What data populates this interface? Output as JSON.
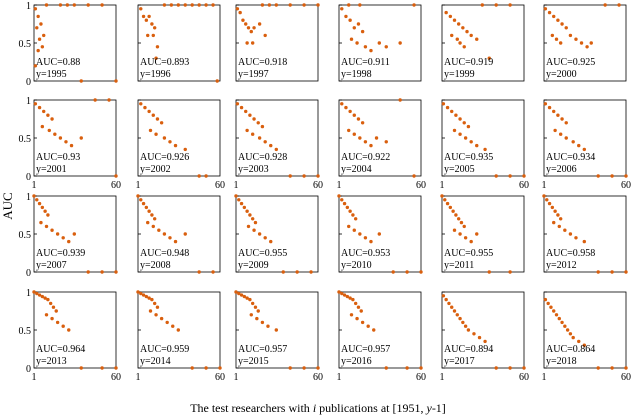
{
  "figure": {
    "ylabel": "AUC",
    "xlabel_prefix": "The test researchers with ",
    "xlabel_italic": "i",
    "xlabel_middle": " publications at [1951, ",
    "xlabel_italic2": "y",
    "xlabel_suffix": "-1]"
  },
  "colors": {
    "points": "#d95f0e",
    "axis": "#000000"
  },
  "chart_data": [
    {
      "type": "scatter",
      "auc_label": "AUC=0.88",
      "year_label": "y=1995",
      "xlim": [
        1,
        60
      ],
      "ylim": [
        0,
        1
      ],
      "x_ticks": [],
      "y_ticks": [
        "1",
        "0.5",
        "0"
      ],
      "x": [
        2,
        4,
        6,
        3,
        5,
        8,
        4,
        7,
        2,
        10,
        20,
        25,
        30,
        40,
        50,
        35,
        60
      ],
      "y": [
        0.95,
        0.85,
        0.75,
        0.7,
        0.55,
        0.6,
        0.4,
        0.45,
        0.2,
        1,
        1,
        1,
        1,
        1,
        1,
        0,
        0
      ]
    },
    {
      "type": "scatter",
      "auc_label": "AUC=0.893",
      "year_label": "y=1996",
      "xlim": [
        1,
        60
      ],
      "ylim": [
        0,
        1
      ],
      "x_ticks": [],
      "y_ticks": [],
      "x": [
        3,
        5,
        7,
        9,
        11,
        13,
        8,
        12,
        15,
        14,
        20,
        25,
        30,
        35,
        40,
        45,
        50,
        55,
        58
      ],
      "y": [
        0.95,
        0.85,
        0.8,
        0.85,
        0.75,
        0.7,
        0.6,
        0.6,
        0.45,
        0.3,
        1,
        1,
        1,
        1,
        1,
        1,
        1,
        1,
        0
      ]
    },
    {
      "type": "scatter",
      "auc_label": "AUC=0.918",
      "year_label": "y=1997",
      "xlim": [
        1,
        60
      ],
      "ylim": [
        0,
        1
      ],
      "x_ticks": [],
      "y_ticks": [],
      "x": [
        2,
        4,
        6,
        8,
        10,
        12,
        14,
        18,
        22,
        9,
        13,
        20,
        25,
        30,
        40,
        50,
        60
      ],
      "y": [
        0.95,
        0.9,
        0.8,
        0.75,
        0.7,
        0.65,
        0.7,
        0.75,
        0.6,
        0.5,
        0.5,
        1,
        1,
        1,
        1,
        1,
        1
      ]
    },
    {
      "type": "scatter",
      "auc_label": "AUC=0.911",
      "year_label": "y=1998",
      "xlim": [
        1,
        60
      ],
      "ylim": [
        0,
        1
      ],
      "x_ticks": [],
      "y_ticks": [],
      "x": [
        3,
        6,
        9,
        12,
        15,
        18,
        10,
        14,
        20,
        24,
        30,
        35,
        45,
        55,
        8,
        16
      ],
      "y": [
        0.95,
        0.85,
        0.8,
        0.7,
        0.75,
        0.65,
        0.55,
        0.5,
        0.45,
        0.4,
        0.5,
        0.45,
        0.5,
        1,
        1,
        1
      ]
    },
    {
      "type": "scatter",
      "auc_label": "AUC=0.919",
      "year_label": "y=1999",
      "xlim": [
        1,
        60
      ],
      "ylim": [
        0,
        1
      ],
      "x_ticks": [],
      "y_ticks": [],
      "x": [
        4,
        7,
        10,
        13,
        16,
        19,
        8,
        12,
        14,
        17,
        22,
        26,
        30,
        40,
        50,
        35
      ],
      "y": [
        0.9,
        0.85,
        0.8,
        0.75,
        0.7,
        0.65,
        0.6,
        0.55,
        0.5,
        0.45,
        0.6,
        0.55,
        1,
        1,
        1,
        0.3
      ]
    },
    {
      "type": "scatter",
      "auc_label": "AUC=0.925",
      "year_label": "y=2000",
      "xlim": [
        1,
        60
      ],
      "ylim": [
        0,
        1
      ],
      "x_ticks": [],
      "y_ticks": [],
      "x": [
        2,
        5,
        8,
        11,
        14,
        17,
        7,
        10,
        13,
        20,
        24,
        28,
        32,
        35,
        45,
        55
      ],
      "y": [
        0.95,
        0.9,
        0.85,
        0.8,
        0.75,
        0.7,
        0.6,
        0.55,
        0.5,
        0.6,
        0.55,
        0.5,
        0.45,
        0.5,
        1,
        1
      ]
    },
    {
      "type": "scatter",
      "auc_label": "AUC=0.93",
      "year_label": "y=2001",
      "xlim": [
        1,
        60
      ],
      "ylim": [
        0,
        1
      ],
      "x_ticks": [
        "1",
        "60"
      ],
      "y_ticks": [
        "1",
        "0.5",
        "0"
      ],
      "x": [
        2,
        5,
        8,
        11,
        14,
        7,
        12,
        16,
        20,
        24,
        28,
        35,
        45,
        55,
        60
      ],
      "y": [
        0.95,
        0.9,
        0.85,
        0.8,
        0.75,
        0.65,
        0.6,
        0.55,
        0.5,
        0.45,
        0.4,
        0.5,
        1,
        1,
        0
      ]
    },
    {
      "type": "scatter",
      "auc_label": "AUC=0.926",
      "year_label": "y=2002",
      "xlim": [
        1,
        60
      ],
      "ylim": [
        0,
        1
      ],
      "x_ticks": [
        "1",
        "60"
      ],
      "y_ticks": [],
      "x": [
        3,
        6,
        9,
        12,
        15,
        18,
        10,
        14,
        20,
        24,
        28,
        35,
        45,
        50
      ],
      "y": [
        0.95,
        0.9,
        0.85,
        0.8,
        0.75,
        0.7,
        0.6,
        0.55,
        0.5,
        0.45,
        0.4,
        0.35,
        0,
        0
      ]
    },
    {
      "type": "scatter",
      "auc_label": "AUC=0.928",
      "year_label": "y=2003",
      "xlim": [
        1,
        60
      ],
      "ylim": [
        0,
        1
      ],
      "x_ticks": [
        "1",
        "60"
      ],
      "y_ticks": [],
      "x": [
        2,
        5,
        8,
        11,
        14,
        17,
        20,
        9,
        13,
        18,
        22,
        26,
        30,
        40,
        50,
        60
      ],
      "y": [
        0.95,
        0.9,
        0.85,
        0.8,
        0.75,
        0.7,
        0.65,
        0.6,
        0.55,
        0.5,
        0.45,
        0.4,
        0.35,
        0,
        0,
        0
      ]
    },
    {
      "type": "scatter",
      "auc_label": "AUC=0.922",
      "year_label": "y=2004",
      "xlim": [
        1,
        60
      ],
      "ylim": [
        0,
        1
      ],
      "x_ticks": [
        "1",
        "60"
      ],
      "y_ticks": [],
      "x": [
        3,
        6,
        9,
        12,
        15,
        18,
        8,
        12,
        16,
        20,
        24,
        28,
        35,
        45,
        55
      ],
      "y": [
        0.95,
        0.9,
        0.85,
        0.8,
        0.75,
        0.7,
        0.6,
        0.55,
        0.5,
        0.45,
        0.4,
        0.5,
        0.45,
        1,
        0
      ]
    },
    {
      "type": "scatter",
      "auc_label": "AUC=0.935",
      "year_label": "y=2005",
      "xlim": [
        1,
        60
      ],
      "ylim": [
        0,
        1
      ],
      "x_ticks": [
        "1",
        "60"
      ],
      "y_ticks": [],
      "x": [
        2,
        5,
        8,
        11,
        14,
        17,
        20,
        10,
        14,
        18,
        22,
        26,
        32,
        40,
        50,
        60
      ],
      "y": [
        0.95,
        0.9,
        0.85,
        0.8,
        0.75,
        0.7,
        0.65,
        0.6,
        0.55,
        0.5,
        0.45,
        0.4,
        0.35,
        0,
        0,
        0
      ]
    },
    {
      "type": "scatter",
      "auc_label": "AUC=0.934",
      "year_label": "y=2006",
      "xlim": [
        1,
        60
      ],
      "ylim": [
        0,
        1
      ],
      "x_ticks": [
        "1",
        "60"
      ],
      "y_ticks": [],
      "x": [
        2,
        5,
        8,
        11,
        14,
        17,
        9,
        13,
        17,
        22,
        26,
        30,
        40,
        50,
        60
      ],
      "y": [
        0.95,
        0.9,
        0.85,
        0.8,
        0.75,
        0.7,
        0.6,
        0.55,
        0.5,
        0.45,
        0.4,
        0.35,
        0,
        0,
        0
      ]
    },
    {
      "type": "scatter",
      "auc_label": "AUC=0.939",
      "year_label": "y=2007",
      "xlim": [
        1,
        60
      ],
      "ylim": [
        0,
        1
      ],
      "x_ticks": [],
      "y_ticks": [
        "1",
        "0.5",
        "0"
      ],
      "x": [
        1,
        3,
        5,
        7,
        9,
        11,
        6,
        10,
        14,
        18,
        22,
        26,
        30,
        40,
        50,
        60
      ],
      "y": [
        1,
        0.95,
        0.9,
        0.85,
        0.8,
        0.75,
        0.65,
        0.6,
        0.55,
        0.5,
        0.45,
        0.4,
        0.5,
        0,
        0,
        0
      ]
    },
    {
      "type": "scatter",
      "auc_label": "AUC=0.948",
      "year_label": "y=2008",
      "xlim": [
        1,
        60
      ],
      "ylim": [
        0,
        1
      ],
      "x_ticks": [],
      "y_ticks": [],
      "x": [
        1,
        3,
        5,
        7,
        9,
        11,
        13,
        8,
        12,
        16,
        20,
        24,
        28,
        35,
        45,
        55
      ],
      "y": [
        1,
        0.95,
        0.9,
        0.85,
        0.8,
        0.75,
        0.7,
        0.65,
        0.6,
        0.55,
        0.5,
        0.45,
        0.4,
        0.5,
        0,
        0
      ]
    },
    {
      "type": "scatter",
      "auc_label": "AUC=0.955",
      "year_label": "y=2009",
      "xlim": [
        1,
        60
      ],
      "ylim": [
        0,
        1
      ],
      "x_ticks": [],
      "y_ticks": [],
      "x": [
        1,
        3,
        5,
        7,
        9,
        11,
        13,
        15,
        10,
        14,
        18,
        22,
        26,
        35,
        45,
        55
      ],
      "y": [
        1,
        0.95,
        0.9,
        0.85,
        0.8,
        0.75,
        0.7,
        0.65,
        0.6,
        0.55,
        0.5,
        0.45,
        0.4,
        0,
        0,
        0
      ]
    },
    {
      "type": "scatter",
      "auc_label": "AUC=0.953",
      "year_label": "y=2010",
      "xlim": [
        1,
        60
      ],
      "ylim": [
        0,
        1
      ],
      "x_ticks": [],
      "y_ticks": [],
      "x": [
        1,
        3,
        5,
        7,
        9,
        11,
        13,
        8,
        12,
        16,
        20,
        24,
        30,
        40,
        50,
        60
      ],
      "y": [
        1,
        0.95,
        0.9,
        0.85,
        0.8,
        0.75,
        0.7,
        0.6,
        0.55,
        0.5,
        0.45,
        0.4,
        0.5,
        0,
        0,
        0
      ]
    },
    {
      "type": "scatter",
      "auc_label": "AUC=0.955",
      "year_label": "y=2011",
      "xlim": [
        1,
        60
      ],
      "ylim": [
        0,
        1
      ],
      "x_ticks": [],
      "y_ticks": [],
      "x": [
        1,
        3,
        5,
        7,
        9,
        11,
        13,
        15,
        17,
        10,
        14,
        18,
        22,
        26,
        35,
        50
      ],
      "y": [
        1,
        0.95,
        0.9,
        0.85,
        0.8,
        0.75,
        0.7,
        0.65,
        0.6,
        0.55,
        0.5,
        0.45,
        0.4,
        0.5,
        0,
        0
      ]
    },
    {
      "type": "scatter",
      "auc_label": "AUC=0.958",
      "year_label": "y=2012",
      "xlim": [
        1,
        60
      ],
      "ylim": [
        0,
        1
      ],
      "x_ticks": [],
      "y_ticks": [],
      "x": [
        1,
        3,
        5,
        7,
        9,
        11,
        13,
        8,
        12,
        16,
        20,
        24,
        30,
        40,
        50,
        60
      ],
      "y": [
        1,
        0.95,
        0.9,
        0.85,
        0.8,
        0.75,
        0.7,
        0.65,
        0.6,
        0.55,
        0.5,
        0.45,
        0.4,
        0,
        0,
        0
      ]
    },
    {
      "type": "scatter",
      "auc_label": "AUC=0.964",
      "year_label": "y=2013",
      "xlim": [
        1,
        60
      ],
      "ylim": [
        0,
        1
      ],
      "x_ticks": [
        "1",
        "60"
      ],
      "y_ticks": [
        "1",
        "0.5",
        "0"
      ],
      "x": [
        1,
        3,
        5,
        7,
        9,
        11,
        13,
        15,
        17,
        10,
        14,
        18,
        22,
        26,
        35,
        50,
        60
      ],
      "y": [
        1,
        0.98,
        0.96,
        0.94,
        0.92,
        0.9,
        0.85,
        0.8,
        0.75,
        0.7,
        0.65,
        0.6,
        0.55,
        0.5,
        0,
        0,
        0
      ]
    },
    {
      "type": "scatter",
      "auc_label": "AUC=0.959",
      "year_label": "y=2014",
      "xlim": [
        1,
        60
      ],
      "ylim": [
        0,
        1
      ],
      "x_ticks": [
        "1",
        "60"
      ],
      "y_ticks": [],
      "x": [
        1,
        3,
        5,
        7,
        9,
        11,
        13,
        15,
        10,
        14,
        18,
        22,
        26,
        30,
        40,
        50,
        60
      ],
      "y": [
        1,
        0.98,
        0.96,
        0.94,
        0.92,
        0.9,
        0.85,
        0.8,
        0.75,
        0.7,
        0.65,
        0.6,
        0.55,
        0.5,
        0,
        0,
        0
      ]
    },
    {
      "type": "scatter",
      "auc_label": "AUC=0.957",
      "year_label": "y=2015",
      "xlim": [
        1,
        60
      ],
      "ylim": [
        0,
        1
      ],
      "x_ticks": [
        "1",
        "60"
      ],
      "y_ticks": [],
      "x": [
        1,
        3,
        5,
        7,
        9,
        11,
        13,
        15,
        17,
        12,
        16,
        20,
        24,
        30,
        40,
        50,
        60
      ],
      "y": [
        1,
        0.98,
        0.96,
        0.94,
        0.92,
        0.9,
        0.85,
        0.8,
        0.75,
        0.7,
        0.65,
        0.6,
        0.55,
        0.5,
        0,
        0,
        0
      ]
    },
    {
      "type": "scatter",
      "auc_label": "AUC=0.957",
      "year_label": "y=2016",
      "xlim": [
        1,
        60
      ],
      "ylim": [
        0,
        1
      ],
      "x_ticks": [
        "1",
        "60"
      ],
      "y_ticks": [],
      "x": [
        1,
        3,
        5,
        7,
        9,
        11,
        13,
        15,
        17,
        10,
        14,
        18,
        22,
        26,
        35,
        50,
        60
      ],
      "y": [
        1,
        0.98,
        0.96,
        0.94,
        0.92,
        0.9,
        0.85,
        0.8,
        0.75,
        0.7,
        0.65,
        0.6,
        0.55,
        0.5,
        0,
        0,
        0
      ]
    },
    {
      "type": "scatter",
      "auc_label": "AUC=0.894",
      "year_label": "y=2017",
      "xlim": [
        1,
        60
      ],
      "ylim": [
        0,
        1
      ],
      "x_ticks": [
        "1",
        "60"
      ],
      "y_ticks": [],
      "x": [
        2,
        4,
        6,
        8,
        10,
        12,
        14,
        16,
        18,
        20,
        24,
        28,
        32,
        40,
        50,
        60
      ],
      "y": [
        0.95,
        0.9,
        0.85,
        0.8,
        0.75,
        0.7,
        0.65,
        0.6,
        0.55,
        0.5,
        0.45,
        0.4,
        0.35,
        0,
        0,
        0
      ]
    },
    {
      "type": "scatter",
      "auc_label": "AUC=0.864",
      "year_label": "y=2018",
      "xlim": [
        1,
        60
      ],
      "ylim": [
        0,
        1
      ],
      "x_ticks": [
        "1",
        "60"
      ],
      "y_ticks": [],
      "x": [
        2,
        4,
        6,
        8,
        10,
        12,
        14,
        16,
        18,
        20,
        22,
        26,
        30,
        40,
        50,
        60
      ],
      "y": [
        0.9,
        0.85,
        0.8,
        0.75,
        0.7,
        0.65,
        0.6,
        0.55,
        0.5,
        0.45,
        0.4,
        0.35,
        0.3,
        0,
        0,
        0
      ]
    }
  ]
}
